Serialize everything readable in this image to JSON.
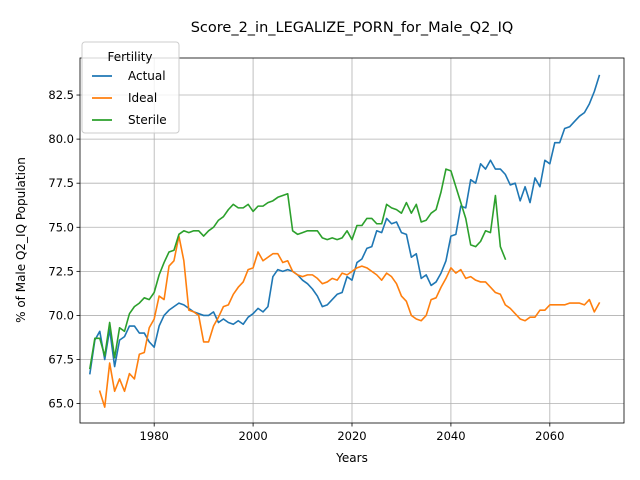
{
  "chart_data": {
    "type": "line",
    "title": "Score_2_in_LEGALIZE_PORN_for_Male_Q2_IQ",
    "xlabel": "Years",
    "ylabel": "% of Male Q2_IQ Population",
    "xlim": [
      1965,
      2075
    ],
    "ylim": [
      63.9,
      84.6
    ],
    "x_ticks": [
      1980,
      2000,
      2020,
      2040,
      2060
    ],
    "y_ticks": [
      65.0,
      67.5,
      70.0,
      72.5,
      75.0,
      77.5,
      80.0,
      82.5
    ],
    "x_tick_labels": [
      "1980",
      "2000",
      "2020",
      "2040",
      "2060"
    ],
    "y_tick_labels": [
      "65.0",
      "67.5",
      "70.0",
      "72.5",
      "75.0",
      "77.5",
      "80.0",
      "82.5"
    ],
    "grid": true,
    "legend": {
      "title": "Fertility",
      "position": "top-left"
    },
    "colors": {
      "Actual": "#1f77b4",
      "Ideal": "#ff7f0e",
      "Sterile": "#2ca02c"
    },
    "series": [
      {
        "name": "Actual",
        "x": [
          1967,
          1968,
          1969,
          1970,
          1971,
          1972,
          1973,
          1974,
          1975,
          1976,
          1977,
          1978,
          1979,
          1980,
          1981,
          1982,
          1983,
          1984,
          1985,
          1986,
          1987,
          1988,
          1989,
          1990,
          1991,
          1992,
          1993,
          1994,
          1995,
          1996,
          1997,
          1998,
          1999,
          2000,
          2001,
          2002,
          2003,
          2004,
          2005,
          2006,
          2007,
          2008,
          2009,
          2010,
          2011,
          2012,
          2013,
          2014,
          2015,
          2016,
          2017,
          2018,
          2019,
          2020,
          2021,
          2022,
          2023,
          2024,
          2025,
          2026,
          2027,
          2028,
          2029,
          2030,
          2031,
          2032,
          2033,
          2034,
          2035,
          2036,
          2037,
          2038,
          2039,
          2040,
          2041,
          2042,
          2043,
          2044,
          2045,
          2046,
          2047,
          2048,
          2049,
          2050,
          2051,
          2052,
          2053,
          2054,
          2055,
          2056,
          2057,
          2058,
          2059,
          2060,
          2061,
          2062,
          2063,
          2064,
          2065,
          2066,
          2067,
          2068,
          2069,
          2070
        ],
        "y": [
          66.7,
          68.6,
          69.1,
          67.5,
          69.2,
          67.1,
          68.6,
          68.8,
          69.4,
          69.4,
          69.0,
          69.0,
          68.5,
          68.2,
          69.4,
          70.0,
          70.3,
          70.5,
          70.7,
          70.6,
          70.4,
          70.2,
          70.1,
          70.0,
          70.0,
          70.2,
          69.6,
          69.8,
          69.6,
          69.5,
          69.7,
          69.5,
          69.9,
          70.1,
          70.4,
          70.2,
          70.5,
          72.2,
          72.6,
          72.5,
          72.6,
          72.5,
          72.3,
          72.0,
          71.8,
          71.5,
          71.1,
          70.5,
          70.6,
          70.9,
          71.2,
          71.3,
          72.2,
          72.0,
          73.0,
          73.2,
          73.8,
          73.9,
          74.8,
          74.7,
          75.5,
          75.2,
          75.3,
          74.7,
          74.6,
          73.3,
          73.5,
          72.1,
          72.3,
          71.7,
          71.9,
          72.4,
          73.1,
          74.5,
          74.6,
          76.2,
          76.1,
          77.7,
          77.5,
          78.6,
          78.3,
          78.8,
          78.3,
          78.3,
          78.0,
          77.4,
          77.5,
          76.5,
          77.3,
          76.4,
          77.8,
          77.3,
          78.8,
          78.6,
          79.8,
          79.8,
          80.6,
          80.7,
          81.0,
          81.3,
          81.5,
          82.0,
          82.7,
          83.6
        ]
      },
      {
        "name": "Ideal",
        "x": [
          1969,
          1970,
          1971,
          1972,
          1973,
          1974,
          1975,
          1976,
          1977,
          1978,
          1979,
          1980,
          1981,
          1982,
          1983,
          1984,
          1985,
          1986,
          1987,
          1988,
          1989,
          1990,
          1991,
          1992,
          1993,
          1994,
          1995,
          1996,
          1997,
          1998,
          1999,
          2000,
          2001,
          2002,
          2003,
          2004,
          2005,
          2006,
          2007,
          2008,
          2009,
          2010,
          2011,
          2012,
          2013,
          2014,
          2015,
          2016,
          2017,
          2018,
          2019,
          2020,
          2021,
          2022,
          2023,
          2024,
          2025,
          2026,
          2027,
          2028,
          2029,
          2030,
          2031,
          2032,
          2033,
          2034,
          2035,
          2036,
          2037,
          2038,
          2039,
          2040,
          2041,
          2042,
          2043,
          2044,
          2045,
          2046,
          2047,
          2048,
          2049,
          2050,
          2051,
          2052,
          2053,
          2054,
          2055,
          2056,
          2057,
          2058,
          2059,
          2060,
          2061,
          2062,
          2063,
          2064,
          2065,
          2066,
          2067,
          2068,
          2069,
          2070
        ],
        "y": [
          65.7,
          64.8,
          67.3,
          65.7,
          66.4,
          65.7,
          66.7,
          66.4,
          67.8,
          67.9,
          69.3,
          69.8,
          71.1,
          70.9,
          72.8,
          73.1,
          74.5,
          73.1,
          70.3,
          70.2,
          70.0,
          68.5,
          68.5,
          69.4,
          69.9,
          70.5,
          70.6,
          71.2,
          71.6,
          71.9,
          72.6,
          72.7,
          73.6,
          73.1,
          73.3,
          73.5,
          73.5,
          73.0,
          73.1,
          72.5,
          72.3,
          72.2,
          72.3,
          72.3,
          72.1,
          71.8,
          71.9,
          72.1,
          72.0,
          72.4,
          72.3,
          72.5,
          72.7,
          72.8,
          72.7,
          72.5,
          72.3,
          72.0,
          72.4,
          72.2,
          71.8,
          71.1,
          70.8,
          70.0,
          69.8,
          69.7,
          70.0,
          70.9,
          71.0,
          71.6,
          72.1,
          72.7,
          72.4,
          72.6,
          72.1,
          72.2,
          72.0,
          71.9,
          71.9,
          71.6,
          71.3,
          71.2,
          70.6,
          70.4,
          70.1,
          69.8,
          69.7,
          69.9,
          69.9,
          70.3,
          70.3,
          70.6,
          70.6,
          70.6,
          70.6,
          70.7,
          70.7,
          70.7,
          70.6,
          70.9,
          70.2,
          70.7
        ]
      },
      {
        "name": "Sterile",
        "x": [
          1967,
          1968,
          1969,
          1970,
          1971,
          1972,
          1973,
          1974,
          1975,
          1976,
          1977,
          1978,
          1979,
          1980,
          1981,
          1982,
          1983,
          1984,
          1985,
          1986,
          1987,
          1988,
          1989,
          1990,
          1991,
          1992,
          1993,
          1994,
          1995,
          1996,
          1997,
          1998,
          1999,
          2000,
          2001,
          2002,
          2003,
          2004,
          2005,
          2006,
          2007,
          2008,
          2009,
          2010,
          2011,
          2012,
          2013,
          2014,
          2015,
          2016,
          2017,
          2018,
          2019,
          2020,
          2021,
          2022,
          2023,
          2024,
          2025,
          2026,
          2027,
          2028,
          2029,
          2030,
          2031,
          2032,
          2033,
          2034,
          2035,
          2036,
          2037,
          2038,
          2039,
          2040,
          2041,
          2042,
          2043,
          2044,
          2045,
          2046,
          2047,
          2048,
          2049,
          2050,
          2051
        ],
        "y": [
          67.0,
          68.7,
          68.7,
          67.7,
          69.6,
          67.6,
          69.3,
          69.1,
          70.1,
          70.5,
          70.7,
          71.0,
          70.9,
          71.3,
          72.3,
          73.0,
          73.6,
          73.7,
          74.6,
          74.8,
          74.7,
          74.8,
          74.8,
          74.5,
          74.8,
          75.0,
          75.4,
          75.6,
          76.0,
          76.3,
          76.1,
          76.1,
          76.3,
          75.9,
          76.2,
          76.2,
          76.4,
          76.5,
          76.7,
          76.8,
          76.9,
          74.8,
          74.6,
          74.7,
          74.8,
          74.8,
          74.8,
          74.4,
          74.3,
          74.4,
          74.3,
          74.4,
          74.8,
          74.3,
          75.1,
          75.1,
          75.5,
          75.5,
          75.2,
          75.2,
          76.3,
          76.1,
          76.0,
          75.8,
          76.4,
          75.8,
          76.3,
          75.3,
          75.4,
          75.8,
          76.0,
          77.0,
          78.3,
          78.2,
          77.3,
          76.4,
          75.5,
          74.0,
          73.9,
          74.2,
          74.8,
          74.7,
          76.8,
          73.9,
          73.2
        ]
      }
    ]
  }
}
